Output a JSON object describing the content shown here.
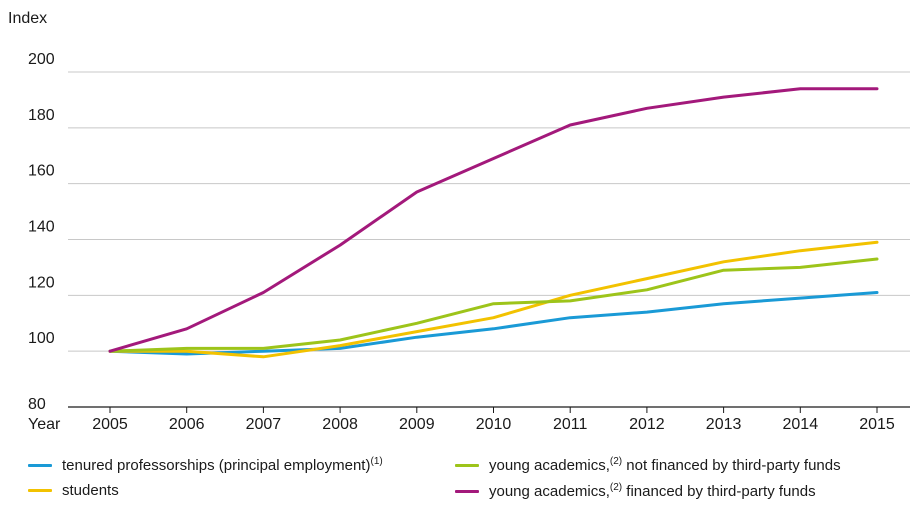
{
  "chart_data": {
    "type": "line",
    "ylabel": "Index",
    "xlabel": "Year",
    "x": [
      "2005",
      "2006",
      "2007",
      "2008",
      "2009",
      "2010",
      "2011",
      "2012",
      "2013",
      "2014",
      "2015"
    ],
    "ylim": [
      80,
      200
    ],
    "yticks": [
      80,
      100,
      120,
      140,
      160,
      180,
      200
    ],
    "grid": "horizontal",
    "legend_position": "bottom",
    "series": [
      {
        "name": "tenured professorships (principal employment)",
        "note": "(1)",
        "color": "#1a9ad6",
        "values": [
          100,
          99,
          100,
          101,
          105,
          108,
          112,
          114,
          117,
          119,
          121
        ]
      },
      {
        "name": "students",
        "note": "",
        "color": "#f2c200",
        "values": [
          100,
          100,
          98,
          102,
          107,
          112,
          120,
          126,
          132,
          136,
          139
        ]
      },
      {
        "name": "young academics,",
        "note": "(2)",
        "name_suffix": " not financed by third-party funds",
        "color": "#9dc41a",
        "values": [
          100,
          101,
          101,
          104,
          110,
          117,
          118,
          122,
          129,
          130,
          133
        ]
      },
      {
        "name": "young academics,",
        "note": "(2)",
        "name_suffix": " financed by third-party funds",
        "color": "#a3197b",
        "values": [
          100,
          108,
          121,
          138,
          157,
          169,
          181,
          187,
          191,
          194,
          194
        ]
      }
    ]
  }
}
